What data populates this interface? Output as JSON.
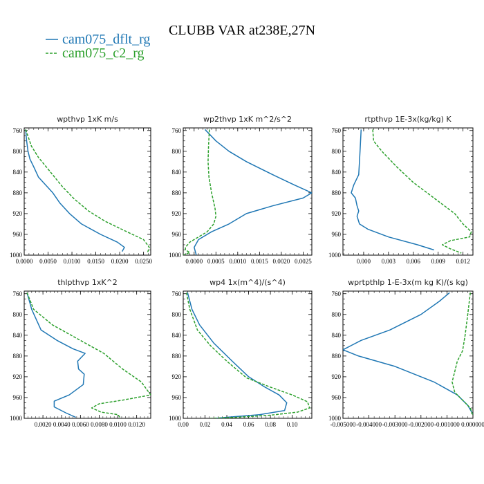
{
  "title": "CLUBB VAR at238E,27N",
  "colors": {
    "dflt": "#1f77b4",
    "c2": "#2ca02c"
  },
  "legend": [
    {
      "label": "cam075_dflt_rg",
      "color": "#1f77b4",
      "dash": false
    },
    {
      "label": "cam075_c2_rg",
      "color": "#2ca02c",
      "dash": true
    }
  ],
  "chart_data": [
    {
      "type": "line",
      "title": "wpthvp   1xK m/s",
      "xlim": [
        0,
        0.0265
      ],
      "ylim": [
        1000,
        755
      ],
      "xticks": [
        0.0,
        0.005,
        0.01,
        0.015,
        0.02,
        0.025
      ],
      "xticklabels": [
        "0.0000",
        "0.0050",
        "0.0100",
        "0.0150",
        "0.0200",
        "0.0250"
      ],
      "yticks": [
        760,
        800,
        840,
        880,
        920,
        960,
        1000
      ],
      "series": [
        {
          "name": "cam075_dflt_rg",
          "x": [
            0.0003,
            0.0005,
            0.0008,
            0.0012,
            0.002,
            0.003,
            0.0045,
            0.006,
            0.0075,
            0.0095,
            0.012,
            0.016,
            0.0195,
            0.021,
            0.0205
          ],
          "y": [
            758,
            780,
            800,
            815,
            830,
            850,
            865,
            880,
            900,
            920,
            940,
            960,
            975,
            985,
            993
          ]
        },
        {
          "name": "cam075_c2_rg",
          "x": [
            0.0003,
            0.0015,
            0.003,
            0.0055,
            0.008,
            0.0105,
            0.0135,
            0.017,
            0.0215,
            0.025,
            0.0262,
            0.0258
          ],
          "y": [
            758,
            790,
            812,
            840,
            868,
            892,
            915,
            935,
            955,
            970,
            985,
            996
          ]
        }
      ]
    },
    {
      "type": "line",
      "title": "wp2thvp   1xK m^2/s^2",
      "xlim": [
        -0.00025,
        0.0027
      ],
      "ylim": [
        1000,
        755
      ],
      "xticks": [
        0.0,
        0.0005,
        0.001,
        0.0015,
        0.002,
        0.0025
      ],
      "xticklabels": [
        "0.0000",
        "0.0005",
        "0.0010",
        "0.0015",
        "0.0020",
        "0.0025"
      ],
      "yticks": [
        760,
        800,
        840,
        880,
        920,
        960,
        1000
      ],
      "series": [
        {
          "name": "cam075_dflt_rg",
          "x": [
            0.00025,
            0.0005,
            0.0008,
            0.0012,
            0.0018,
            0.0023,
            0.0027,
            0.0025,
            0.0018,
            0.0012,
            0.0008,
            0.0004,
            0.0001,
            0.0,
            5e-05
          ],
          "y": [
            758,
            780,
            800,
            820,
            845,
            865,
            880,
            890,
            905,
            920,
            940,
            955,
            970,
            985,
            1000
          ]
        },
        {
          "name": "cam075_c2_rg",
          "x": [
            0.00035,
            0.00033,
            0.00032,
            0.00034,
            0.0004,
            0.00048,
            0.0005,
            0.00045,
            0.0003,
            0.0001,
            -0.0001,
            -0.0002,
            -0.0002,
            -0.0001,
            -0.00025
          ],
          "y": [
            758,
            790,
            820,
            850,
            880,
            910,
            925,
            940,
            955,
            965,
            975,
            985,
            990,
            995,
            1000
          ]
        }
      ]
    },
    {
      "type": "line",
      "title": "rtpthvp   1E-3x(kg/kg) K",
      "xlim": [
        -0.0025,
        0.0132
      ],
      "ylim": [
        1000,
        755
      ],
      "xticks": [
        0.0,
        0.003,
        0.006,
        0.009,
        0.012
      ],
      "xticklabels": [
        "0.000",
        "0.003",
        "0.006",
        "0.009",
        "0.012"
      ],
      "yticks": [
        760,
        800,
        840,
        880,
        920,
        960,
        1000
      ],
      "series": [
        {
          "name": "cam075_dflt_rg",
          "x": [
            -0.0003,
            -0.0004,
            -0.0005,
            -0.0006,
            -0.0012,
            -0.0015,
            -0.001,
            -0.0008,
            -0.0006,
            -0.0008,
            -0.0005,
            0.0005,
            0.003,
            0.0065,
            0.0085
          ],
          "y": [
            758,
            790,
            820,
            845,
            865,
            880,
            890,
            905,
            915,
            925,
            940,
            950,
            965,
            980,
            990
          ]
        },
        {
          "name": "cam075_c2_rg",
          "x": [
            0.0011,
            0.0012,
            0.0022,
            0.004,
            0.006,
            0.0085,
            0.011,
            0.012,
            0.013,
            0.0128,
            0.0105,
            0.0095,
            0.0105,
            0.0118
          ],
          "y": [
            758,
            780,
            800,
            830,
            860,
            890,
            920,
            940,
            955,
            965,
            972,
            980,
            988,
            996
          ]
        }
      ]
    },
    {
      "type": "line",
      "title": "thlpthvp   1xK^2",
      "xlim": [
        0,
        0.0135
      ],
      "ylim": [
        1000,
        755
      ],
      "xticks": [
        0.002,
        0.004,
        0.006,
        0.008,
        0.01,
        0.012
      ],
      "xticklabels": [
        "0.0020",
        "0.0040",
        "0.0060",
        "0.0080",
        "0.0100",
        "0.0120"
      ],
      "yticks": [
        760,
        800,
        840,
        880,
        920,
        960,
        1000
      ],
      "series": [
        {
          "name": "cam075_dflt_rg",
          "x": [
            0.0003,
            0.0008,
            0.0018,
            0.0035,
            0.0052,
            0.0065,
            0.0057,
            0.0058,
            0.0064,
            0.0063,
            0.0048,
            0.0032,
            0.0032,
            0.0045,
            0.0055
          ],
          "y": [
            758,
            790,
            830,
            850,
            866,
            875,
            890,
            905,
            915,
            935,
            955,
            967,
            978,
            990,
            998
          ]
        },
        {
          "name": "cam075_c2_rg",
          "x": [
            0.0003,
            0.001,
            0.003,
            0.006,
            0.0085,
            0.0105,
            0.0125,
            0.0135,
            0.0105,
            0.008,
            0.0072,
            0.0082,
            0.01,
            0.0102
          ],
          "y": [
            758,
            790,
            820,
            850,
            875,
            905,
            930,
            955,
            965,
            972,
            980,
            988,
            993,
            998
          ]
        }
      ]
    },
    {
      "type": "line",
      "title": "wp4   1x(m^4)/(s^4)",
      "xlim": [
        0,
        0.118
      ],
      "ylim": [
        1000,
        755
      ],
      "xticks": [
        0.0,
        0.02,
        0.04,
        0.06,
        0.08,
        0.1
      ],
      "xticklabels": [
        "0.00",
        "0.02",
        "0.04",
        "0.06",
        "0.08",
        "0.10"
      ],
      "yticks": [
        760,
        800,
        840,
        880,
        920,
        960,
        1000
      ],
      "series": [
        {
          "name": "cam075_dflt_rg",
          "x": [
            0.004,
            0.008,
            0.015,
            0.028,
            0.045,
            0.06,
            0.075,
            0.088,
            0.095,
            0.093,
            0.07,
            0.04,
            0.03
          ],
          "y": [
            758,
            790,
            820,
            855,
            890,
            920,
            940,
            955,
            970,
            985,
            993,
            998,
            1000
          ]
        },
        {
          "name": "cam075_c2_rg",
          "x": [
            0.003,
            0.006,
            0.013,
            0.025,
            0.04,
            0.058,
            0.08,
            0.1,
            0.114,
            0.116,
            0.105,
            0.08,
            0.05,
            0.025
          ],
          "y": [
            758,
            790,
            830,
            860,
            890,
            922,
            940,
            955,
            968,
            980,
            988,
            994,
            998,
            1000
          ]
        }
      ]
    },
    {
      "type": "line",
      "title": "wprtpthlp   1-E-3x(m kg K)/(s kg)",
      "xlim": [
        -0.005,
        0.0
      ],
      "ylim": [
        1000,
        755
      ],
      "xticks": [
        -0.005,
        -0.004,
        -0.003,
        -0.002,
        -0.001,
        0.0
      ],
      "xticklabels": [
        "-0.005000",
        "-0.004000",
        "-0.003000",
        "-0.002000",
        "-0.001000",
        "0.000000"
      ],
      "yticks": [
        760,
        800,
        840,
        880,
        920,
        960,
        1000
      ],
      "series": [
        {
          "name": "cam075_dflt_rg",
          "x": [
            -0.0009,
            -0.0013,
            -0.002,
            -0.0032,
            -0.0043,
            -0.005,
            -0.0044,
            -0.003,
            -0.0015,
            -0.0006,
            -0.0002,
            0.0
          ],
          "y": [
            758,
            775,
            800,
            830,
            850,
            868,
            880,
            900,
            930,
            955,
            975,
            992
          ]
        },
        {
          "name": "cam075_c2_rg",
          "x": [
            -0.0001,
            -0.0002,
            -0.0003,
            -0.0004,
            -0.0006,
            -0.0007,
            -0.0008,
            -0.0007,
            -0.0004,
            -0.0001,
            0.0
          ],
          "y": [
            758,
            800,
            840,
            870,
            890,
            910,
            930,
            950,
            965,
            980,
            995
          ]
        }
      ]
    }
  ]
}
